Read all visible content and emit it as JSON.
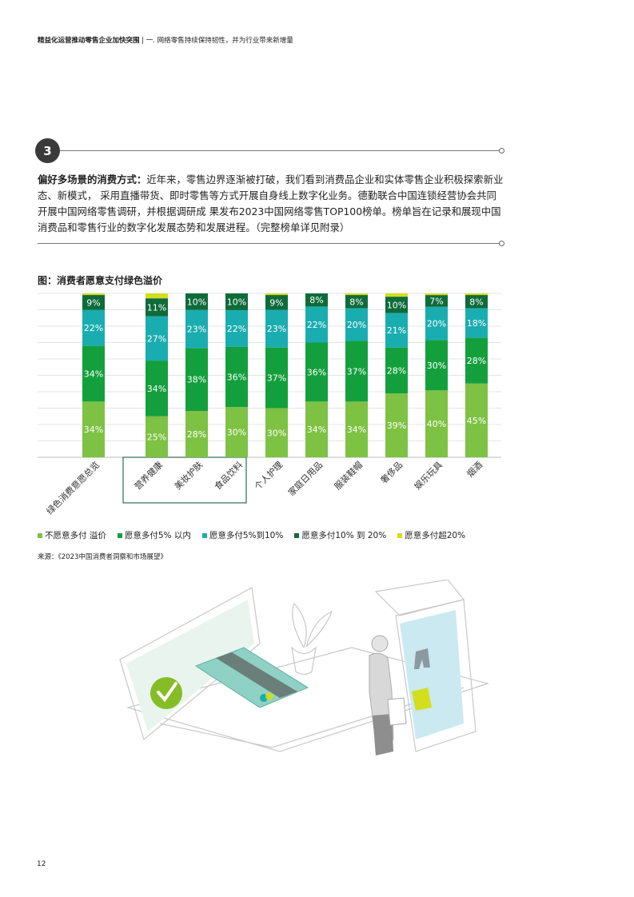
{
  "header": {
    "bold": "精益化运营推动零售企业加快突围",
    "rest": " | 一. 网络零售持续保持韧性，并为行业带来新增量"
  },
  "section": {
    "number": "3",
    "lead_bold": "偏好多场景的消费方式：",
    "body": "近年来，零售边界逐渐被打破，我们看到消费品企业和实体零售企业积极探索新业态、新模式， 采用直播带货、即时零售等方式开展自身线上数字化业务。德勤联合中国连锁经营协会共同开展中国网络零售调研，并根据调研成 果发布2023中国网络零售TOP100榜单。榜单旨在记录和展现中国消费品和零售行业的数字化发展态势和发展进程。（完整榜单详见附录）"
  },
  "figure_title": "图：消费者愿意支付绿色溢价",
  "source": "来源：《2023中国消费者洞察和市场展望》",
  "page_number": "12",
  "colors": {
    "s1": "#7dc242",
    "s2": "#13a03c",
    "s3": "#1aadb0",
    "s4": "#0e6b3a",
    "s5": "#d3de1c",
    "highlight_box": "#2b6d52"
  },
  "chart_data": {
    "type": "bar",
    "stacked": true,
    "categories": [
      "绿色消费意愿总览",
      "营养健康",
      "美妆护肤",
      "食品饮料",
      "个人护理",
      "家庭日用品",
      "服装鞋帽",
      "奢侈品",
      "娱乐玩具",
      "烟酒"
    ],
    "highlighted_categories": [
      "营养健康",
      "美妆护肤",
      "食品饮料"
    ],
    "series": [
      {
        "name": "不愿意多付 溢价",
        "values": [
          34,
          25,
          28,
          30,
          30,
          34,
          34,
          39,
          40,
          45
        ]
      },
      {
        "name": "愿意多付5% 以内",
        "values": [
          34,
          34,
          38,
          36,
          37,
          36,
          37,
          28,
          30,
          28
        ]
      },
      {
        "name": "愿意多付5%到10%",
        "values": [
          22,
          27,
          23,
          22,
          23,
          22,
          20,
          21,
          20,
          18
        ]
      },
      {
        "name": "愿意多付10% 到 20%",
        "values": [
          9,
          11,
          10,
          10,
          9,
          8,
          8,
          10,
          7,
          8
        ]
      },
      {
        "name": "愿意多付超20%",
        "values": [
          1,
          3,
          0,
          0,
          1,
          0,
          1,
          2,
          1,
          1
        ]
      }
    ],
    "data_labels": [
      [
        "34%",
        "25%",
        "28%",
        "30%",
        "30%",
        "34%",
        "34%",
        "39%",
        "40%",
        "45%"
      ],
      [
        "34%",
        "34%",
        "38%",
        "36%",
        "37%",
        "36%",
        "37%",
        "28%",
        "30%",
        "28%"
      ],
      [
        "22%",
        "27%",
        "23%",
        "22%",
        "23%",
        "22%",
        "20%",
        "21%",
        "20%",
        "18%"
      ],
      [
        "9%",
        "11%",
        "10%",
        "10%",
        "9%",
        "8%",
        "8%",
        "10%",
        "7%",
        "8%"
      ]
    ],
    "ylim": [
      0,
      100
    ],
    "grid": true,
    "legend_position": "bottom"
  }
}
